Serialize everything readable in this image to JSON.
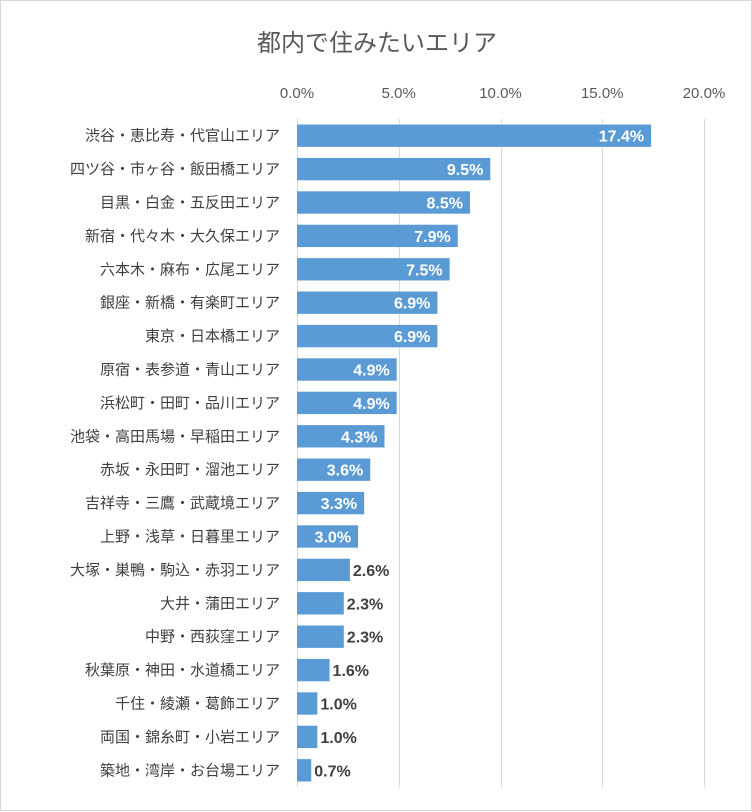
{
  "chart_data": {
    "type": "bar",
    "orientation": "horizontal",
    "title": "都内で住みたいエリア",
    "xlabel": "",
    "ylabel": "",
    "xlim": [
      0,
      20
    ],
    "x_ticks": [
      "0.0%",
      "5.0%",
      "10.0%",
      "15.0%",
      "20.0%"
    ],
    "x_tick_values": [
      0,
      5,
      10,
      15,
      20
    ],
    "x_axis_position": "top",
    "grid": true,
    "legend": "none",
    "bar_color": "#5b9bd5",
    "categories": [
      "渋谷・恵比寿・代官山エリア",
      "四ツ谷・市ヶ谷・飯田橋エリア",
      "目黒・白金・五反田エリア",
      "新宿・代々木・大久保エリア",
      "六本木・麻布・広尾エリア",
      "銀座・新橋・有楽町エリア",
      "東京・日本橋エリア",
      "原宿・表参道・青山エリア",
      "浜松町・田町・品川エリア",
      "池袋・高田馬場・早稲田エリア",
      "赤坂・永田町・溜池エリア",
      "吉祥寺・三鷹・武蔵境エリア",
      "上野・浅草・日暮里エリア",
      "大塚・巣鴨・駒込・赤羽エリア",
      "大井・蒲田エリア",
      "中野・西荻窪エリア",
      "秋葉原・神田・水道橋エリア",
      "千住・綾瀬・葛飾エリア",
      "両国・錦糸町・小岩エリア",
      "築地・湾岸・お台場エリア"
    ],
    "values": [
      17.4,
      9.5,
      8.5,
      7.9,
      7.5,
      6.9,
      6.9,
      4.9,
      4.9,
      4.3,
      3.6,
      3.3,
      3.0,
      2.6,
      2.3,
      2.3,
      1.6,
      1.0,
      1.0,
      0.7
    ],
    "data_labels": [
      "17.4%",
      "9.5%",
      "8.5%",
      "7.9%",
      "7.5%",
      "6.9%",
      "6.9%",
      "4.9%",
      "4.9%",
      "4.3%",
      "3.6%",
      "3.3%",
      "3.0%",
      "2.6%",
      "2.3%",
      "2.3%",
      "1.6%",
      "1.0%",
      "1.0%",
      "0.7%"
    ]
  }
}
